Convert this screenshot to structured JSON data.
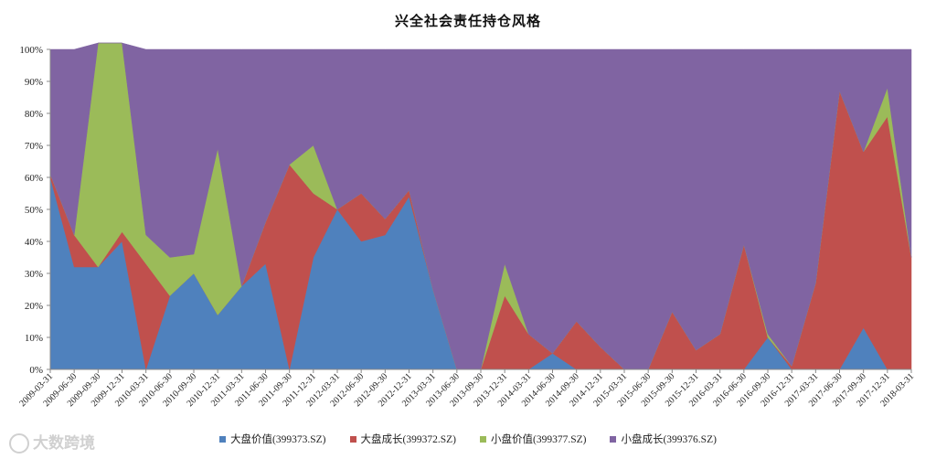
{
  "chart_data": {
    "type": "area",
    "title": "兴全社会责任持仓风格",
    "stacked": true,
    "ylim": [
      0,
      1
    ],
    "yticks": [
      "0%",
      "10%",
      "20%",
      "30%",
      "40%",
      "50%",
      "60%",
      "70%",
      "80%",
      "90%",
      "100%"
    ],
    "legend_position": "bottom",
    "categories": [
      "2009-03-31",
      "2009-06-30",
      "2009-09-30",
      "2009-12-31",
      "2010-03-31",
      "2010-06-30",
      "2010-09-30",
      "2010-12-31",
      "2011-03-31",
      "2011-06-30",
      "2011-09-30",
      "2011-12-31",
      "2012-03-31",
      "2012-06-30",
      "2012-09-30",
      "2012-12-31",
      "2013-03-31",
      "2013-06-30",
      "2013-09-30",
      "2013-12-31",
      "2014-03-31",
      "2014-06-30",
      "2014-09-30",
      "2014-12-31",
      "2015-03-31",
      "2015-06-30",
      "2015-09-30",
      "2015-12-31",
      "2016-03-31",
      "2016-06-30",
      "2016-09-30",
      "2016-12-31",
      "2017-03-31",
      "2017-06-30",
      "2017-09-30",
      "2017-12-31",
      "2018-03-31"
    ],
    "series": [
      {
        "name": "大盘价值(399373.SZ)",
        "color": "#4f81bd",
        "values": [
          0.6,
          0.32,
          0.32,
          0.4,
          0.0,
          0.23,
          0.3,
          0.17,
          0.26,
          0.33,
          0.0,
          0.35,
          0.5,
          0.4,
          0.42,
          0.54,
          0.25,
          0.0,
          0.0,
          0.0,
          0.0,
          0.05,
          0.0,
          0.0,
          0.0,
          0.0,
          0.0,
          0.0,
          0.0,
          0.0,
          0.1,
          0.0,
          0.0,
          0.0,
          0.13,
          0.0,
          0.0
        ]
      },
      {
        "name": "大盘成长(399372.SZ)",
        "color": "#c0504d",
        "values": [
          0.01,
          0.1,
          0.0,
          0.03,
          0.33,
          0.0,
          0.0,
          0.0,
          0.0,
          0.13,
          0.64,
          0.2,
          0.0,
          0.15,
          0.05,
          0.02,
          0.0,
          0.0,
          0.0,
          0.23,
          0.11,
          0.0,
          0.15,
          0.07,
          0.0,
          0.0,
          0.18,
          0.06,
          0.11,
          0.39,
          0.0,
          0.01,
          0.27,
          0.87,
          0.55,
          0.79,
          0.35
        ]
      },
      {
        "name": "小盘价值(399377.SZ)",
        "color": "#9bbb59",
        "values": [
          0.0,
          0.0,
          0.7,
          0.59,
          0.09,
          0.12,
          0.06,
          0.52,
          0.0,
          0.0,
          0.0,
          0.15,
          0.0,
          0.0,
          0.0,
          0.0,
          0.0,
          0.0,
          0.0,
          0.1,
          0.0,
          0.0,
          0.0,
          0.0,
          0.0,
          0.0,
          0.0,
          0.0,
          0.0,
          0.0,
          0.01,
          0.0,
          0.0,
          0.0,
          0.0,
          0.09,
          0.0
        ]
      },
      {
        "name": "小盘成长(399376.SZ)",
        "color": "#8064a2",
        "values": [
          0.39,
          0.58,
          0.0,
          0.0,
          0.58,
          0.65,
          0.64,
          0.31,
          0.74,
          0.54,
          0.36,
          0.3,
          0.5,
          0.45,
          0.53,
          0.44,
          0.75,
          1.0,
          1.0,
          0.67,
          0.89,
          0.95,
          0.85,
          0.93,
          1.0,
          1.0,
          0.82,
          0.94,
          0.89,
          0.61,
          0.89,
          0.99,
          0.73,
          0.13,
          0.32,
          0.12,
          0.65
        ]
      }
    ]
  },
  "watermark": {
    "text": "大数跨境"
  }
}
